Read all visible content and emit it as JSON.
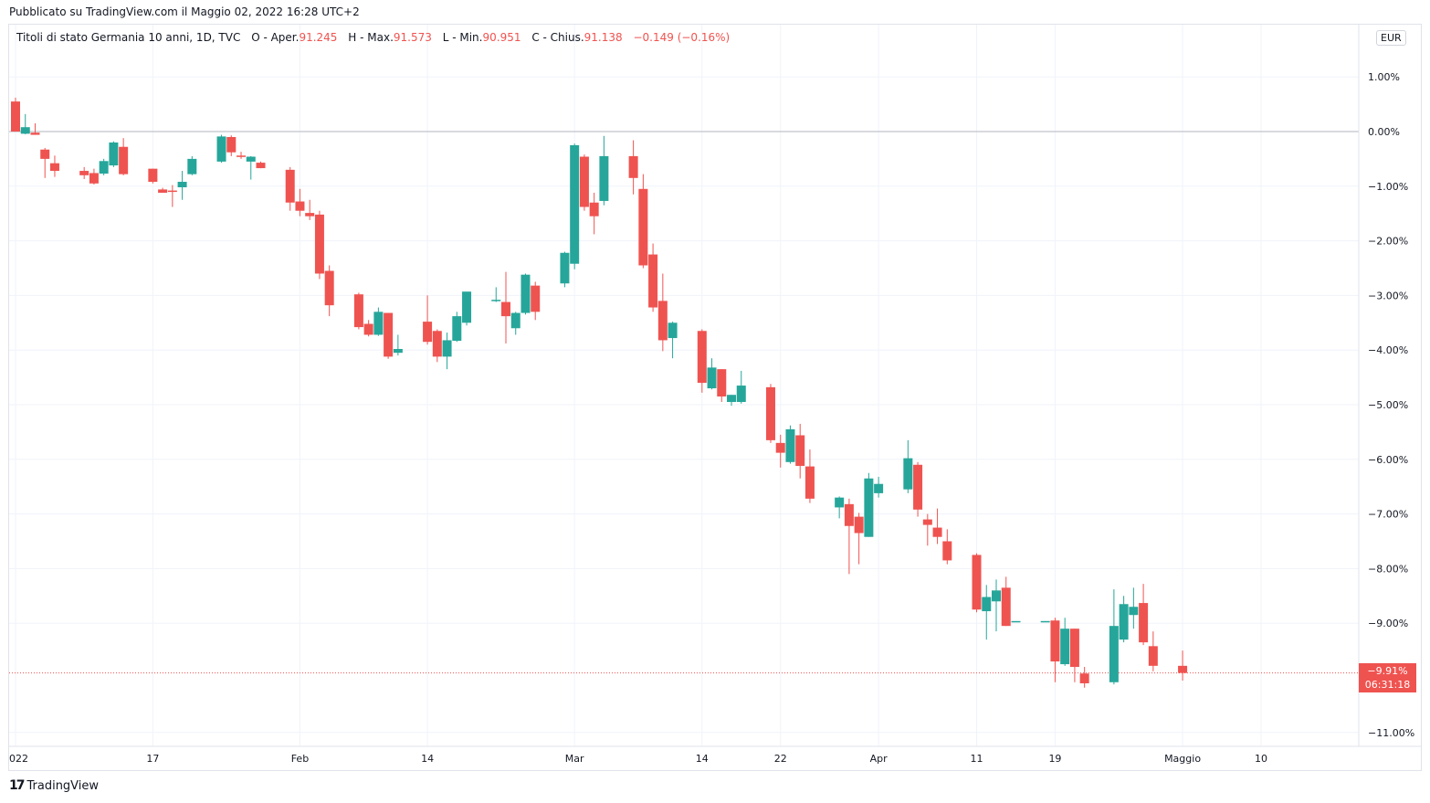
{
  "header": {
    "published": "Pubblicato su TradingView.com il Maggio 02, 2022 16:28 UTC+2"
  },
  "legend": {
    "symbol": "Titoli di stato Germania 10 anni, 1D, TVC",
    "o_label": "O - Aper.",
    "o_value": "91.245",
    "h_label": "H - Max.",
    "h_value": "91.573",
    "l_label": "L - Min.",
    "l_value": "90.951",
    "c_label": "C - Chius.",
    "c_value": "91.138",
    "change": "−0.149 (−0.16%)"
  },
  "currency": "EUR",
  "price_tag": {
    "value": "−9.91%",
    "countdown": "06:31:18"
  },
  "footer": {
    "brand": "TradingView"
  },
  "colors": {
    "up": "#26a69a",
    "down": "#ef5350",
    "grid": "#f0f3fa",
    "zero_line": "#b2b5be"
  },
  "chart_data": {
    "type": "candlestick",
    "title": "",
    "y_unit": "%",
    "ylim": [
      -11.0,
      1.5
    ],
    "y_ticks": [
      "1.00%",
      "0.00%",
      "−1.00%",
      "−2.00%",
      "−3.00%",
      "−4.00%",
      "−5.00%",
      "−6.00%",
      "−7.00%",
      "−8.00%",
      "−9.00%",
      "−11.00%"
    ],
    "y_tick_values": [
      1,
      0,
      -1,
      -2,
      -3,
      -4,
      -5,
      -6,
      -7,
      -8,
      -9,
      -11
    ],
    "x_ticks": [
      {
        "label": "022",
        "date": "2022-01-03"
      },
      {
        "label": "17",
        "date": "2022-01-17"
      },
      {
        "label": "Feb",
        "date": "2022-02-01"
      },
      {
        "label": "14",
        "date": "2022-02-14"
      },
      {
        "label": "Mar",
        "date": "2022-03-01"
      },
      {
        "label": "14",
        "date": "2022-03-14"
      },
      {
        "label": "22",
        "date": "2022-03-22"
      },
      {
        "label": "Apr",
        "date": "2022-04-01"
      },
      {
        "label": "11",
        "date": "2022-04-11"
      },
      {
        "label": "19",
        "date": "2022-04-19"
      },
      {
        "label": "Maggio",
        "date": "2022-05-02"
      },
      {
        "label": "10",
        "date": "2022-05-10"
      }
    ],
    "last_value": -9.91,
    "candles": [
      {
        "date": "2022-01-03",
        "o": 0.55,
        "h": 0.62,
        "l": 0.0,
        "c": 0.0
      },
      {
        "date": "2022-01-04",
        "o": -0.04,
        "h": 0.32,
        "l": -0.05,
        "c": 0.08
      },
      {
        "date": "2022-01-05",
        "o": -0.02,
        "h": 0.15,
        "l": -0.06,
        "c": -0.06
      },
      {
        "date": "2022-01-06",
        "o": -0.33,
        "h": -0.3,
        "l": -0.85,
        "c": -0.5
      },
      {
        "date": "2022-01-07",
        "o": -0.58,
        "h": -0.44,
        "l": -0.83,
        "c": -0.72
      },
      {
        "date": "2022-01-10",
        "o": -0.72,
        "h": -0.65,
        "l": -0.87,
        "c": -0.8
      },
      {
        "date": "2022-01-11",
        "o": -0.76,
        "h": -0.68,
        "l": -0.97,
        "c": -0.95
      },
      {
        "date": "2022-01-12",
        "o": -0.77,
        "h": -0.5,
        "l": -0.8,
        "c": -0.54
      },
      {
        "date": "2022-01-13",
        "o": -0.62,
        "h": -0.18,
        "l": -0.65,
        "c": -0.2
      },
      {
        "date": "2022-01-14",
        "o": -0.28,
        "h": -0.12,
        "l": -0.8,
        "c": -0.78
      },
      {
        "date": "2022-01-17",
        "o": -0.68,
        "h": -0.68,
        "l": -0.95,
        "c": -0.92
      },
      {
        "date": "2022-01-18",
        "o": -1.06,
        "h": -1.03,
        "l": -1.12,
        "c": -1.12
      },
      {
        "date": "2022-01-19",
        "o": -1.08,
        "h": -0.98,
        "l": -1.38,
        "c": -1.1
      },
      {
        "date": "2022-01-20",
        "o": -1.02,
        "h": -0.72,
        "l": -1.25,
        "c": -0.92
      },
      {
        "date": "2022-01-21",
        "o": -0.78,
        "h": -0.45,
        "l": -0.8,
        "c": -0.5
      },
      {
        "date": "2022-01-24",
        "o": -0.55,
        "h": -0.06,
        "l": -0.57,
        "c": -0.09
      },
      {
        "date": "2022-01-25",
        "o": -0.1,
        "h": -0.07,
        "l": -0.45,
        "c": -0.38
      },
      {
        "date": "2022-01-26",
        "o": -0.44,
        "h": -0.37,
        "l": -0.5,
        "c": -0.46
      },
      {
        "date": "2022-01-27",
        "o": -0.55,
        "h": -0.45,
        "l": -0.88,
        "c": -0.46
      },
      {
        "date": "2022-01-28",
        "o": -0.57,
        "h": -0.55,
        "l": -0.67,
        "c": -0.67
      },
      {
        "date": "2022-01-31",
        "o": -0.7,
        "h": -0.65,
        "l": -1.45,
        "c": -1.3
      },
      {
        "date": "2022-02-01",
        "o": -1.28,
        "h": -1.05,
        "l": -1.55,
        "c": -1.45
      },
      {
        "date": "2022-02-02",
        "o": -1.49,
        "h": -1.25,
        "l": -1.62,
        "c": -1.55
      },
      {
        "date": "2022-02-03",
        "o": -1.52,
        "h": -1.45,
        "l": -2.7,
        "c": -2.6
      },
      {
        "date": "2022-02-04",
        "o": -2.55,
        "h": -2.45,
        "l": -3.38,
        "c": -3.18
      },
      {
        "date": "2022-02-07",
        "o": -2.98,
        "h": -2.95,
        "l": -3.62,
        "c": -3.58
      },
      {
        "date": "2022-02-08",
        "o": -3.52,
        "h": -3.45,
        "l": -3.75,
        "c": -3.72
      },
      {
        "date": "2022-02-09",
        "o": -3.72,
        "h": -3.22,
        "l": -3.74,
        "c": -3.3
      },
      {
        "date": "2022-02-10",
        "o": -3.32,
        "h": -3.32,
        "l": -4.16,
        "c": -4.12
      },
      {
        "date": "2022-02-11",
        "o": -4.05,
        "h": -3.72,
        "l": -4.1,
        "c": -3.98
      },
      {
        "date": "2022-02-14",
        "o": -3.48,
        "h": -3.0,
        "l": -3.9,
        "c": -3.85
      },
      {
        "date": "2022-02-15",
        "o": -3.65,
        "h": -3.62,
        "l": -4.22,
        "c": -4.12
      },
      {
        "date": "2022-02-16",
        "o": -4.12,
        "h": -3.68,
        "l": -4.35,
        "c": -3.82
      },
      {
        "date": "2022-02-17",
        "o": -3.83,
        "h": -3.3,
        "l": -3.85,
        "c": -3.38
      },
      {
        "date": "2022-02-18",
        "o": -3.5,
        "h": -2.95,
        "l": -3.55,
        "c": -2.93
      },
      {
        "date": "2022-02-21",
        "o": -3.08,
        "h": -2.85,
        "l": -3.12,
        "c": -3.08
      },
      {
        "date": "2022-02-22",
        "o": -3.12,
        "h": -2.57,
        "l": -3.88,
        "c": -3.38
      },
      {
        "date": "2022-02-23",
        "o": -3.6,
        "h": -3.3,
        "l": -3.72,
        "c": -3.32
      },
      {
        "date": "2022-02-24",
        "o": -3.32,
        "h": -2.6,
        "l": -3.35,
        "c": -2.62
      },
      {
        "date": "2022-02-25",
        "o": -2.82,
        "h": -2.75,
        "l": -3.45,
        "c": -3.3
      },
      {
        "date": "2022-02-28",
        "o": -2.78,
        "h": -2.2,
        "l": -2.85,
        "c": -2.22
      },
      {
        "date": "2022-03-01",
        "o": -2.42,
        "h": -0.22,
        "l": -2.52,
        "c": -0.25
      },
      {
        "date": "2022-03-02",
        "o": -0.46,
        "h": -0.42,
        "l": -1.45,
        "c": -1.38
      },
      {
        "date": "2022-03-03",
        "o": -1.3,
        "h": -1.12,
        "l": -1.88,
        "c": -1.55
      },
      {
        "date": "2022-03-04",
        "o": -1.27,
        "h": -0.08,
        "l": -1.35,
        "c": -0.45
      },
      {
        "date": "2022-03-07",
        "o": -0.45,
        "h": -0.16,
        "l": -1.15,
        "c": -0.85
      },
      {
        "date": "2022-03-08",
        "o": -1.05,
        "h": -0.78,
        "l": -2.5,
        "c": -2.45
      },
      {
        "date": "2022-03-09",
        "o": -2.25,
        "h": -2.05,
        "l": -3.3,
        "c": -3.22
      },
      {
        "date": "2022-03-10",
        "o": -3.1,
        "h": -2.6,
        "l": -4.02,
        "c": -3.82
      },
      {
        "date": "2022-03-11",
        "o": -3.78,
        "h": -3.48,
        "l": -4.15,
        "c": -3.5
      },
      {
        "date": "2022-03-14",
        "o": -3.65,
        "h": -3.62,
        "l": -4.78,
        "c": -4.6
      },
      {
        "date": "2022-03-15",
        "o": -4.7,
        "h": -4.15,
        "l": -4.72,
        "c": -4.32
      },
      {
        "date": "2022-03-16",
        "o": -4.35,
        "h": -4.35,
        "l": -4.95,
        "c": -4.85
      },
      {
        "date": "2022-03-17",
        "o": -4.95,
        "h": -4.82,
        "l": -5.02,
        "c": -4.82
      },
      {
        "date": "2022-03-18",
        "o": -4.95,
        "h": -4.38,
        "l": -4.98,
        "c": -4.65
      },
      {
        "date": "2022-03-21",
        "o": -4.68,
        "h": -4.62,
        "l": -5.7,
        "c": -5.65
      },
      {
        "date": "2022-03-22",
        "o": -5.7,
        "h": -5.55,
        "l": -6.15,
        "c": -5.88
      },
      {
        "date": "2022-03-23",
        "o": -6.05,
        "h": -5.38,
        "l": -6.08,
        "c": -5.45
      },
      {
        "date": "2022-03-24",
        "o": -5.56,
        "h": -5.35,
        "l": -6.35,
        "c": -6.12
      },
      {
        "date": "2022-03-25",
        "o": -6.13,
        "h": -5.82,
        "l": -6.8,
        "c": -6.72
      },
      {
        "date": "2022-03-28",
        "o": -6.88,
        "h": -6.68,
        "l": -7.08,
        "c": -6.7
      },
      {
        "date": "2022-03-29",
        "o": -6.82,
        "h": -6.72,
        "l": -8.1,
        "c": -7.22
      },
      {
        "date": "2022-03-30",
        "o": -7.05,
        "h": -6.98,
        "l": -7.92,
        "c": -7.35
      },
      {
        "date": "2022-03-31",
        "o": -7.42,
        "h": -6.25,
        "l": -7.42,
        "c": -6.35
      },
      {
        "date": "2022-04-01",
        "o": -6.62,
        "h": -6.32,
        "l": -6.7,
        "c": -6.45
      },
      {
        "date": "2022-04-04",
        "o": -6.55,
        "h": -5.65,
        "l": -6.62,
        "c": -5.98
      },
      {
        "date": "2022-04-05",
        "o": -6.1,
        "h": -6.05,
        "l": -7.05,
        "c": -6.92
      },
      {
        "date": "2022-04-06",
        "o": -7.1,
        "h": -7.0,
        "l": -7.58,
        "c": -7.2
      },
      {
        "date": "2022-04-07",
        "o": -7.25,
        "h": -6.9,
        "l": -7.55,
        "c": -7.42
      },
      {
        "date": "2022-04-08",
        "o": -7.5,
        "h": -7.28,
        "l": -7.92,
        "c": -7.85
      },
      {
        "date": "2022-04-11",
        "o": -7.75,
        "h": -7.72,
        "l": -8.8,
        "c": -8.75
      },
      {
        "date": "2022-04-12",
        "o": -8.78,
        "h": -8.3,
        "l": -9.3,
        "c": -8.52
      },
      {
        "date": "2022-04-13",
        "o": -8.6,
        "h": -8.2,
        "l": -9.15,
        "c": -8.4
      },
      {
        "date": "2022-04-14",
        "o": -8.35,
        "h": -8.15,
        "l": -9.05,
        "c": -9.05
      },
      {
        "date": "2022-04-15",
        "o": -8.96,
        "h": -8.96,
        "l": -8.96,
        "c": -8.96
      },
      {
        "date": "2022-04-18",
        "o": -8.96,
        "h": -8.96,
        "l": -8.96,
        "c": -8.96
      },
      {
        "date": "2022-04-19",
        "o": -8.95,
        "h": -8.9,
        "l": -10.08,
        "c": -9.7
      },
      {
        "date": "2022-04-20",
        "o": -9.75,
        "h": -8.9,
        "l": -9.78,
        "c": -9.1
      },
      {
        "date": "2022-04-21",
        "o": -9.1,
        "h": -9.1,
        "l": -10.08,
        "c": -9.8
      },
      {
        "date": "2022-04-22",
        "o": -9.92,
        "h": -9.8,
        "l": -10.18,
        "c": -10.1
      },
      {
        "date": "2022-04-25",
        "o": -10.08,
        "h": -8.38,
        "l": -10.12,
        "c": -9.05
      },
      {
        "date": "2022-04-26",
        "o": -9.3,
        "h": -8.5,
        "l": -9.35,
        "c": -8.65
      },
      {
        "date": "2022-04-27",
        "o": -8.85,
        "h": -8.35,
        "l": -9.1,
        "c": -8.7
      },
      {
        "date": "2022-04-28",
        "o": -8.63,
        "h": -8.28,
        "l": -9.4,
        "c": -9.35
      },
      {
        "date": "2022-04-29",
        "o": -9.42,
        "h": -9.15,
        "l": -9.88,
        "c": -9.78
      },
      {
        "date": "2022-05-02",
        "o": -9.78,
        "h": -9.5,
        "l": -10.05,
        "c": -9.91
      }
    ]
  }
}
